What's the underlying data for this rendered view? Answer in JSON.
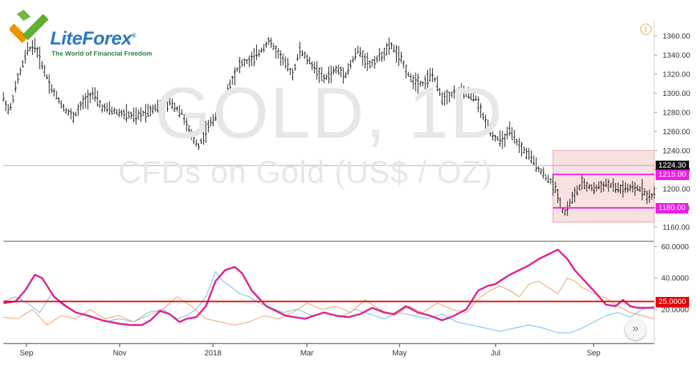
{
  "brand": {
    "name_part1": "Lite",
    "name_part2": "Forex",
    "registered": "®",
    "tagline": "The World of Financial Freedom",
    "colors": {
      "primary": "#2b78c2",
      "green": "#5fb030",
      "orange": "#f39200"
    }
  },
  "watermark": {
    "line1": "GOLD, 1D",
    "line2": "CFDs on Gold (US$ / OZ)"
  },
  "controls": {
    "info_icon": "!",
    "scroll_icon": "»"
  },
  "chart_data": [
    {
      "type": "ohlc",
      "symbol": "GOLD",
      "timeframe": "1D",
      "ylim": [
        1150,
        1370
      ],
      "y_ticks": [
        1160,
        1180,
        1200,
        1220,
        1240,
        1260,
        1280,
        1300,
        1320,
        1340,
        1360
      ],
      "x_labels": [
        "Sep",
        "Nov",
        "2018",
        "Mar",
        "May",
        "Jul",
        "Sep"
      ],
      "price_path": [
        [
          0,
          1295
        ],
        [
          5,
          1280
        ],
        [
          12,
          1315
        ],
        [
          20,
          1345
        ],
        [
          26,
          1350
        ],
        [
          32,
          1330
        ],
        [
          40,
          1305
        ],
        [
          50,
          1285
        ],
        [
          58,
          1275
        ],
        [
          66,
          1290
        ],
        [
          74,
          1300
        ],
        [
          82,
          1285
        ],
        [
          95,
          1280
        ],
        [
          110,
          1275
        ],
        [
          125,
          1285
        ],
        [
          138,
          1290
        ],
        [
          148,
          1280
        ],
        [
          156,
          1255
        ],
        [
          162,
          1245
        ],
        [
          170,
          1265
        ],
        [
          178,
          1280
        ],
        [
          188,
          1310
        ],
        [
          196,
          1330
        ],
        [
          206,
          1335
        ],
        [
          214,
          1345
        ],
        [
          220,
          1355
        ],
        [
          232,
          1335
        ],
        [
          240,
          1320
        ],
        [
          246,
          1345
        ],
        [
          256,
          1330
        ],
        [
          266,
          1315
        ],
        [
          276,
          1325
        ],
        [
          284,
          1320
        ],
        [
          294,
          1345
        ],
        [
          304,
          1330
        ],
        [
          314,
          1340
        ],
        [
          322,
          1350
        ],
        [
          330,
          1335
        ],
        [
          338,
          1315
        ],
        [
          348,
          1310
        ],
        [
          356,
          1320
        ],
        [
          364,
          1295
        ],
        [
          374,
          1300
        ],
        [
          384,
          1300
        ],
        [
          392,
          1295
        ],
        [
          398,
          1275
        ],
        [
          406,
          1255
        ],
        [
          414,
          1250
        ],
        [
          420,
          1260
        ],
        [
          428,
          1245
        ],
        [
          436,
          1235
        ],
        [
          442,
          1225
        ],
        [
          448,
          1215
        ],
        [
          452,
          1210
        ],
        [
          456,
          1205
        ],
        [
          460,
          1195
        ],
        [
          463,
          1180
        ],
        [
          466,
          1175
        ],
        [
          472,
          1190
        ],
        [
          480,
          1205
        ],
        [
          490,
          1200
        ],
        [
          500,
          1205
        ],
        [
          510,
          1200
        ],
        [
          520,
          1200
        ],
        [
          530,
          1200
        ],
        [
          536,
          1190
        ],
        [
          540,
          1195
        ]
      ],
      "last_price": "1224.30",
      "range_box": {
        "x_start": 456,
        "x_end": 540,
        "y_low": 1165,
        "y_high": 1240
      },
      "levels": [
        {
          "value": 1215.0,
          "label": "1215.00",
          "color": "#ee1ee6"
        },
        {
          "value": 1180.0,
          "label": "1180.00",
          "color": "#ee1ee6"
        }
      ]
    },
    {
      "type": "line",
      "indicator": "ADX",
      "ylim": [
        0,
        62
      ],
      "y_ticks": [
        20,
        40,
        60
      ],
      "y_tick_labels": [
        "20.0000",
        "40.0000",
        "60.0000"
      ],
      "threshold": {
        "value": 25,
        "label": "25.0000",
        "color": "#e60000"
      },
      "series": [
        {
          "color": "#e0208e",
          "x": [
            0,
            10,
            18,
            26,
            32,
            42,
            52,
            60,
            70,
            82,
            95,
            105,
            115,
            122,
            130,
            138,
            146,
            152,
            160,
            168,
            176,
            184,
            192,
            198,
            206,
            212,
            218,
            226,
            234,
            242,
            250,
            258,
            266,
            276,
            286,
            296,
            306,
            316,
            324,
            334,
            344,
            354,
            364,
            374,
            384,
            394,
            402,
            408,
            414,
            420,
            428,
            436,
            444,
            452,
            460,
            468,
            474,
            480,
            486,
            492,
            500,
            508,
            514,
            520,
            526,
            532,
            540
          ],
          "values": [
            24,
            25,
            32,
            42,
            40,
            28,
            22,
            18,
            16,
            13,
            11,
            10,
            10,
            13,
            19,
            17,
            12,
            14,
            15,
            22,
            38,
            45,
            47,
            43,
            32,
            27,
            22,
            19,
            16,
            15,
            14,
            16,
            18,
            16,
            15,
            17,
            21,
            18,
            17,
            22,
            18,
            16,
            13,
            16,
            20,
            32,
            35,
            36,
            39,
            42,
            45,
            48,
            52,
            55,
            58,
            52,
            45,
            40,
            35,
            30,
            23,
            22,
            26,
            22,
            21,
            21,
            21
          ]
        },
        {
          "color": "#6ab8ec",
          "x": [
            0,
            10,
            20,
            30,
            40,
            50,
            60,
            72,
            84,
            96,
            108,
            120,
            132,
            144,
            152,
            160,
            168,
            176,
            182,
            188,
            196,
            204,
            212,
            222,
            232,
            244,
            256,
            268,
            280,
            292,
            304,
            316,
            328,
            340,
            352,
            364,
            376,
            388,
            400,
            412,
            424,
            436,
            448,
            460,
            470,
            480,
            490,
            500,
            510,
            520,
            530,
            540
          ],
          "values": [
            25,
            28,
            24,
            18,
            30,
            22,
            18,
            16,
            12,
            14,
            12,
            18,
            20,
            14,
            16,
            20,
            28,
            44,
            38,
            35,
            30,
            28,
            24,
            21,
            18,
            20,
            16,
            18,
            15,
            20,
            17,
            14,
            18,
            16,
            14,
            17,
            12,
            10,
            8,
            6,
            8,
            10,
            8,
            5,
            5,
            8,
            12,
            16,
            18,
            15,
            20,
            22
          ]
        },
        {
          "color": "#f09a5a",
          "x": [
            0,
            12,
            24,
            36,
            48,
            60,
            72,
            84,
            96,
            108,
            120,
            132,
            144,
            156,
            168,
            180,
            192,
            204,
            216,
            228,
            240,
            252,
            264,
            276,
            288,
            300,
            312,
            324,
            336,
            348,
            360,
            372,
            384,
            396,
            404,
            412,
            420,
            428,
            436,
            444,
            452,
            460,
            468,
            474,
            480,
            490,
            500,
            510,
            520,
            530,
            540
          ],
          "values": [
            15,
            14,
            20,
            10,
            16,
            14,
            20,
            14,
            16,
            12,
            16,
            20,
            28,
            22,
            14,
            12,
            10,
            12,
            16,
            14,
            18,
            24,
            20,
            22,
            18,
            26,
            20,
            16,
            22,
            18,
            24,
            20,
            18,
            28,
            32,
            35,
            32,
            28,
            36,
            38,
            34,
            30,
            40,
            38,
            34,
            30,
            27,
            22,
            18,
            16,
            14
          ]
        }
      ]
    }
  ]
}
